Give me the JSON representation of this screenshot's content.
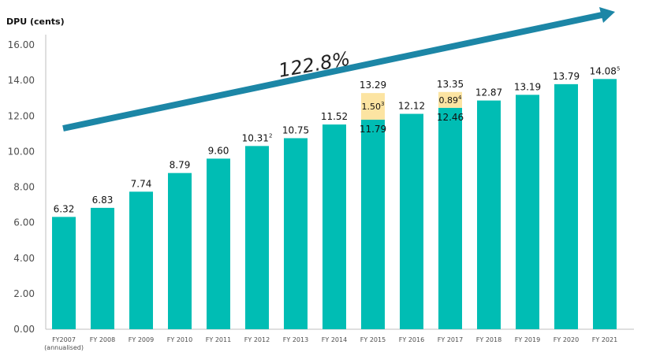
{
  "chart_data": {
    "type": "bar",
    "ylabel": "DPU (cents)",
    "ylim": [
      0,
      16
    ],
    "yticks": [
      "0.00",
      "2.00",
      "4.00",
      "6.00",
      "8.00",
      "10.00",
      "12.00",
      "14.00",
      "16.00"
    ],
    "categories": [
      "FY2007",
      "FY 2008",
      "FY 2009",
      "FY 2010",
      "FY 2011",
      "FY 2012",
      "FY 2013",
      "FY 2014",
      "FY 2015",
      "FY 2016",
      "FY 2017",
      "FY 2018",
      "FY 2019",
      "FY 2020",
      "FY 2021"
    ],
    "category_sublabels": {
      "0": "(annualised)"
    },
    "series": [
      {
        "values": [
          6.32,
          6.83,
          7.74,
          8.79,
          9.6,
          10.31,
          10.75,
          11.52,
          11.79,
          12.12,
          12.46,
          12.87,
          13.19,
          13.79,
          14.08
        ]
      },
      {
        "values": [
          0,
          0,
          0,
          0,
          0,
          0,
          0,
          0,
          1.5,
          0,
          0.89,
          0,
          0,
          0,
          0
        ]
      }
    ],
    "total_labels": [
      "6.32",
      "6.83",
      "7.74",
      "8.79",
      "9.60",
      "10.31",
      "10.75",
      "11.52",
      "13.29",
      "12.12",
      "13.35",
      "12.87",
      "13.19",
      "13.79",
      "14.08"
    ],
    "total_superscripts": {
      "5": "2",
      "14": "5"
    },
    "inner_labels": {
      "8": "11.79",
      "10": "12.46"
    },
    "top_segment_labels": {
      "8": {
        "value": "1.50",
        "sup": "3"
      },
      "10": {
        "value": "0.89",
        "sup": "4"
      }
    },
    "annotation": "122.8%",
    "colors": {
      "base": "#00bdb4",
      "top": "#fce4a2",
      "arrow": "#1c86a6",
      "axis": "#bfbfbf"
    }
  }
}
